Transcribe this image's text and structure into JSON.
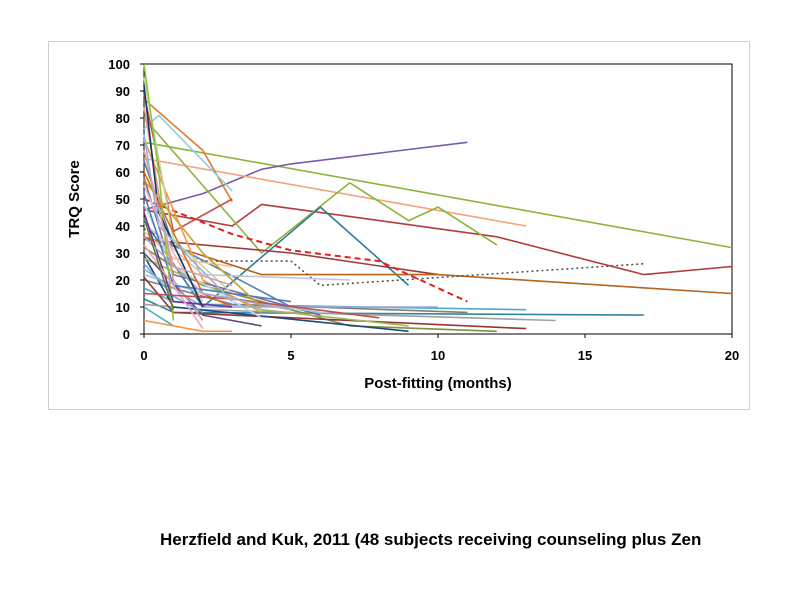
{
  "caption": "Herzfield and Kuk, 2011 (48 subjects receiving counseling plus Zen",
  "chart_data": {
    "type": "line",
    "title": "",
    "xlabel": "Post-fitting (months)",
    "ylabel": "TRQ Score",
    "xlim": [
      0,
      20
    ],
    "ylim": [
      0,
      100
    ],
    "xticks": [
      0,
      5,
      10,
      15,
      20
    ],
    "yticks": [
      0,
      10,
      20,
      30,
      40,
      50,
      60,
      70,
      80,
      90,
      100
    ],
    "grid": false,
    "legend": "none",
    "series": [
      {
        "color": "#8db33c",
        "dash": "solid",
        "x": [
          0,
          20
        ],
        "y": [
          71,
          32
        ]
      },
      {
        "color": "#7a5aa6",
        "dash": "solid",
        "x": [
          0,
          2,
          4,
          5,
          11
        ],
        "y": [
          46,
          52,
          61,
          63,
          71
        ]
      },
      {
        "color": "#f6a27a",
        "dash": "solid",
        "x": [
          0,
          13
        ],
        "y": [
          65,
          40
        ]
      },
      {
        "color": "#e07b2e",
        "dash": "solid",
        "x": [
          0,
          2,
          3
        ],
        "y": [
          87,
          68,
          49
        ]
      },
      {
        "color": "#b23b3b",
        "dash": "solid",
        "x": [
          0,
          3,
          4,
          12,
          17,
          20
        ],
        "y": [
          46,
          40,
          48,
          36,
          22,
          25
        ]
      },
      {
        "color": "#8db33c",
        "dash": "solid",
        "x": [
          0,
          4,
          7,
          9,
          10,
          12
        ],
        "y": [
          80,
          30,
          56,
          42,
          47,
          33
        ]
      },
      {
        "color": "#2e7d9a",
        "dash": "solid",
        "x": [
          0,
          2,
          6,
          9
        ],
        "y": [
          42,
          10,
          47,
          18
        ]
      },
      {
        "color": "#9e3a3a",
        "dash": "solid",
        "x": [
          0,
          5,
          10
        ],
        "y": [
          35,
          30,
          22
        ]
      },
      {
        "color": "#b5651d",
        "dash": "solid",
        "x": [
          0,
          4,
          7,
          10,
          20
        ],
        "y": [
          36,
          22,
          22,
          22,
          15
        ]
      },
      {
        "color": "#e02020",
        "dash": "dash",
        "x": [
          0,
          3,
          5,
          8,
          11
        ],
        "y": [
          50,
          37,
          31,
          27,
          12
        ]
      },
      {
        "color": "#555555",
        "dash": "dot",
        "x": [
          0,
          2,
          5,
          6,
          17
        ],
        "y": [
          39,
          27,
          27,
          18,
          26
        ]
      },
      {
        "color": "#4bacc6",
        "dash": "solid",
        "x": [
          0,
          1,
          2,
          13
        ],
        "y": [
          17,
          12,
          11,
          9
        ]
      },
      {
        "color": "#31859c",
        "dash": "solid",
        "x": [
          0,
          1,
          17
        ],
        "y": [
          13,
          8,
          7
        ]
      },
      {
        "color": "#a0a0a0",
        "dash": "solid",
        "x": [
          0,
          2,
          14
        ],
        "y": [
          11,
          9,
          5
        ]
      },
      {
        "color": "#7f7f7f",
        "dash": "solid",
        "x": [
          0,
          3,
          11
        ],
        "y": [
          20,
          11,
          8
        ]
      },
      {
        "color": "#77933c",
        "dash": "solid",
        "x": [
          0,
          2,
          7,
          12
        ],
        "y": [
          32,
          18,
          3,
          1
        ]
      },
      {
        "color": "#953735",
        "dash": "solid",
        "x": [
          0,
          1,
          13
        ],
        "y": [
          21,
          8,
          2
        ]
      },
      {
        "color": "#1f497d",
        "dash": "solid",
        "x": [
          0,
          1,
          9
        ],
        "y": [
          29,
          10,
          1
        ]
      },
      {
        "color": "#9bbb59",
        "dash": "solid",
        "x": [
          0,
          4,
          9
        ],
        "y": [
          28,
          9,
          3
        ]
      },
      {
        "color": "#604a7b",
        "dash": "solid",
        "x": [
          0,
          2,
          4
        ],
        "y": [
          30,
          7,
          3
        ]
      },
      {
        "color": "#93cddd",
        "dash": "solid",
        "x": [
          0,
          0.5,
          3
        ],
        "y": [
          76,
          81,
          53
        ]
      },
      {
        "color": "#c0504d",
        "dash": "solid",
        "x": [
          0,
          1,
          3
        ],
        "y": [
          89,
          38,
          50
        ]
      },
      {
        "color": "#4f81bd",
        "dash": "solid",
        "x": [
          0,
          1,
          5
        ],
        "y": [
          64,
          33,
          10
        ]
      },
      {
        "color": "#f79646",
        "dash": "solid",
        "x": [
          0,
          2,
          4
        ],
        "y": [
          72,
          20,
          8
        ]
      },
      {
        "color": "#8064a2",
        "dash": "solid",
        "x": [
          0,
          1,
          6
        ],
        "y": [
          58,
          22,
          7
        ]
      },
      {
        "color": "#c3d69b",
        "dash": "solid",
        "x": [
          0,
          1,
          3
        ],
        "y": [
          95,
          35,
          15
        ]
      },
      {
        "color": "#e6b9b8",
        "dash": "solid",
        "x": [
          0,
          1,
          2
        ],
        "y": [
          55,
          30,
          12
        ]
      },
      {
        "color": "#b7dde8",
        "dash": "solid",
        "x": [
          0,
          1,
          4
        ],
        "y": [
          48,
          25,
          6
        ]
      },
      {
        "color": "#ccc1da",
        "dash": "solid",
        "x": [
          0,
          2,
          7
        ],
        "y": [
          41,
          22,
          20
        ]
      },
      {
        "color": "#fac090",
        "dash": "solid",
        "x": [
          0,
          1,
          3
        ],
        "y": [
          38,
          28,
          25
        ]
      },
      {
        "color": "#d99694",
        "dash": "solid",
        "x": [
          0,
          1,
          2
        ],
        "y": [
          84,
          20,
          5
        ]
      },
      {
        "color": "#9dc3e6",
        "dash": "solid",
        "x": [
          0,
          2,
          6
        ],
        "y": [
          22,
          15,
          8
        ]
      },
      {
        "color": "#e46c0a",
        "dash": "solid",
        "x": [
          0,
          2,
          3
        ],
        "y": [
          60,
          15,
          10
        ]
      },
      {
        "color": "#4a7ebb",
        "dash": "solid",
        "x": [
          0,
          1,
          5
        ],
        "y": [
          52,
          18,
          12
        ]
      },
      {
        "color": "#6fa8dc",
        "dash": "solid",
        "x": [
          0,
          1,
          2
        ],
        "y": [
          26,
          14,
          8
        ]
      },
      {
        "color": "#93a8d6",
        "dash": "solid",
        "x": [
          0,
          2,
          10
        ],
        "y": [
          24,
          10,
          10
        ]
      },
      {
        "color": "#8cc63f",
        "dash": "solid",
        "x": [
          0,
          0.5,
          1
        ],
        "y": [
          100,
          60,
          5
        ]
      },
      {
        "color": "#7030a0",
        "dash": "solid",
        "x": [
          0,
          1,
          3
        ],
        "y": [
          45,
          12,
          10
        ]
      },
      {
        "color": "#f2a0c0",
        "dash": "solid",
        "x": [
          0,
          1,
          2
        ],
        "y": [
          33,
          18,
          2
        ]
      },
      {
        "color": "#c0504d",
        "dash": "solid",
        "x": [
          0,
          3,
          8
        ],
        "y": [
          15,
          13,
          6
        ]
      },
      {
        "color": "#4bacc6",
        "dash": "solid",
        "x": [
          0,
          1
        ],
        "y": [
          10,
          3
        ]
      },
      {
        "color": "#f79646",
        "dash": "solid",
        "x": [
          0,
          2,
          3
        ],
        "y": [
          5,
          1,
          1
        ]
      },
      {
        "color": "#b3a2c7",
        "dash": "solid",
        "x": [
          0,
          2,
          5
        ],
        "y": [
          36,
          15,
          9
        ]
      },
      {
        "color": "#17375e",
        "dash": "solid",
        "x": [
          0,
          0.5,
          2
        ],
        "y": [
          92,
          45,
          10
        ]
      },
      {
        "color": "#8db3e2",
        "dash": "solid",
        "x": [
          0,
          0.5,
          3
        ],
        "y": [
          74,
          40,
          12
        ]
      },
      {
        "color": "#c9a227",
        "dash": "solid",
        "x": [
          0,
          2,
          4
        ],
        "y": [
          57,
          30,
          10
        ]
      },
      {
        "color": "#5f7f3f",
        "dash": "solid",
        "x": [
          0,
          1
        ],
        "y": [
          43,
          9
        ]
      },
      {
        "color": "#d8a0a0",
        "dash": "solid",
        "x": [
          0,
          1,
          3
        ],
        "y": [
          68,
          25,
          18
        ]
      }
    ]
  }
}
